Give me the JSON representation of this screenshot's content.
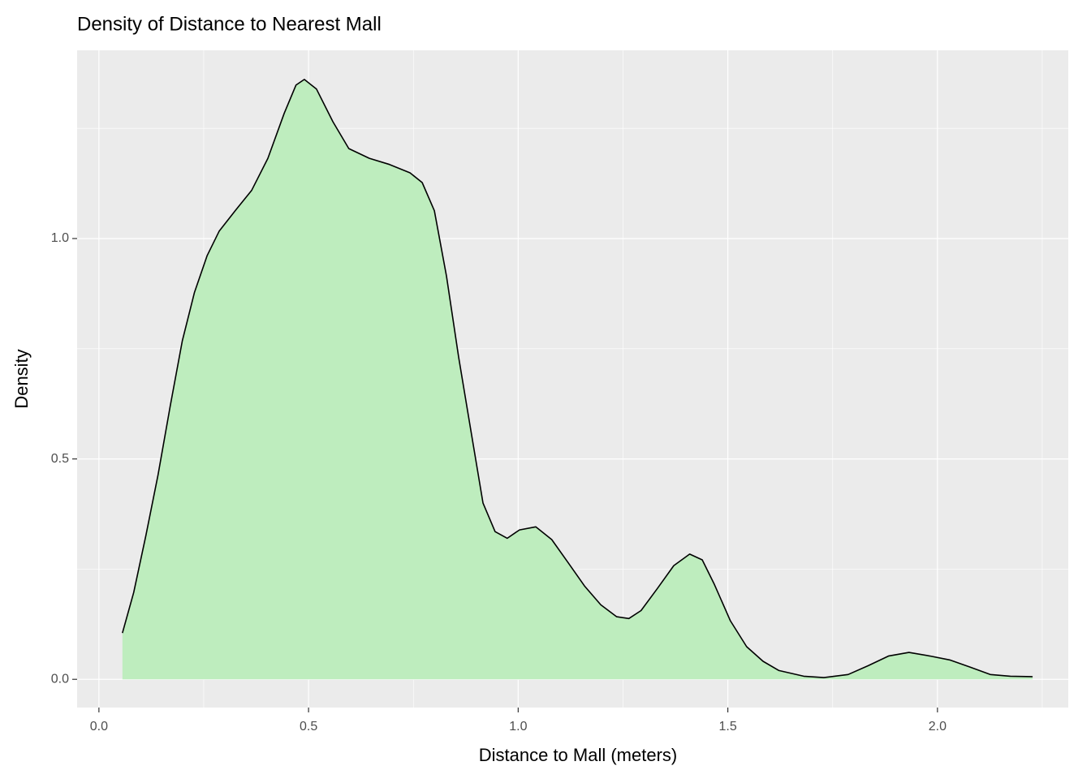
{
  "chart_data": {
    "type": "area",
    "title": "Density of Distance to Nearest Mall",
    "x_label": "Distance to Mall (meters)",
    "y_label": "Density",
    "x": [
      0.056,
      0.083,
      0.112,
      0.141,
      0.17,
      0.199,
      0.228,
      0.258,
      0.287,
      0.325,
      0.364,
      0.403,
      0.442,
      0.47,
      0.49,
      0.519,
      0.558,
      0.596,
      0.645,
      0.693,
      0.742,
      0.771,
      0.8,
      0.829,
      0.858,
      0.887,
      0.916,
      0.945,
      0.974,
      1.003,
      1.042,
      1.08,
      1.119,
      1.158,
      1.197,
      1.235,
      1.264,
      1.293,
      1.332,
      1.371,
      1.409,
      1.439,
      1.468,
      1.506,
      1.545,
      1.584,
      1.622,
      1.681,
      1.729,
      1.787,
      1.835,
      1.884,
      1.932,
      1.981,
      2.029,
      2.077,
      2.126,
      2.174,
      2.227
    ],
    "values": [
      0.105,
      0.197,
      0.326,
      0.464,
      0.62,
      0.768,
      0.878,
      0.961,
      1.017,
      1.063,
      1.109,
      1.182,
      1.284,
      1.348,
      1.361,
      1.339,
      1.265,
      1.204,
      1.182,
      1.168,
      1.149,
      1.127,
      1.063,
      0.915,
      0.731,
      0.565,
      0.4,
      0.335,
      0.32,
      0.339,
      0.346,
      0.317,
      0.265,
      0.212,
      0.169,
      0.142,
      0.138,
      0.156,
      0.206,
      0.258,
      0.284,
      0.271,
      0.215,
      0.133,
      0.074,
      0.041,
      0.02,
      0.007,
      0.004,
      0.011,
      0.031,
      0.053,
      0.061,
      0.053,
      0.044,
      0.028,
      0.011,
      0.007,
      0.006
    ],
    "color": "#beedbe",
    "line_color": "#000000",
    "xlim": [
      -0.052,
      2.312
    ],
    "ylim": [
      -0.064,
      1.427
    ],
    "xticks": [
      {
        "value": 0,
        "label": "0.0"
      },
      0.5,
      {
        "value": 1,
        "label": "1.0"
      },
      1.5,
      {
        "value": 2,
        "label": "2.0"
      }
    ],
    "yticks": [
      {
        "value": 0,
        "label": "0.0"
      },
      0.5,
      {
        "value": 1,
        "label": "1.0"
      }
    ],
    "xminor": [
      0.25,
      0.75,
      1.25,
      1.75,
      2.25
    ],
    "yminor": [
      0.25,
      0.75,
      1.25
    ],
    "grid": true
  }
}
